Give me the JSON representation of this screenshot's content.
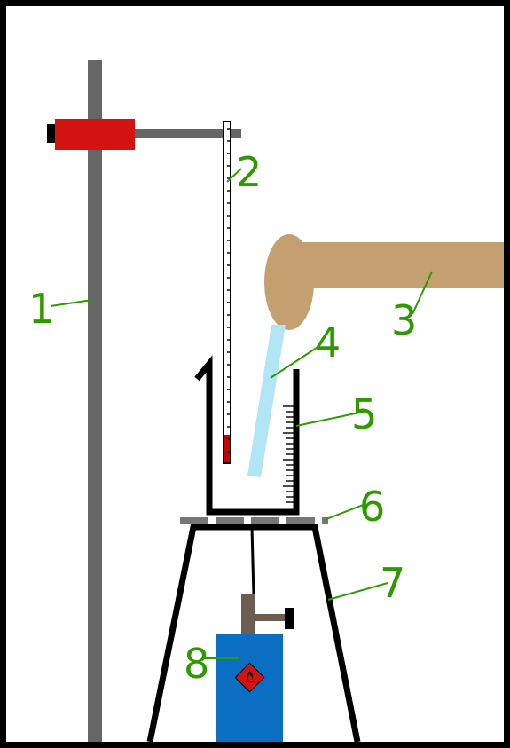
{
  "colors": {
    "border": "#000000",
    "stand": "#666666",
    "clamp": "#d31212",
    "arm": "#c4a070",
    "water": "#b3e6f4",
    "thermometer_liquid": "#cc0000",
    "gauze": "#777777",
    "burner": "#0a6fc2",
    "burner_valve": "#6b5e50",
    "hazard": "#d31212",
    "label": "#2e9a00",
    "leader": "#2e9a00"
  },
  "icons": {
    "hazard_symbol": "flammable-hazard-icon"
  },
  "labels": [
    {
      "id": "stand",
      "text": "1"
    },
    {
      "id": "thermometer",
      "text": "2"
    },
    {
      "id": "arm",
      "text": "3"
    },
    {
      "id": "water-stream",
      "text": "4"
    },
    {
      "id": "beaker",
      "text": "5"
    },
    {
      "id": "gauze",
      "text": "6"
    },
    {
      "id": "tripod",
      "text": "7"
    },
    {
      "id": "burner",
      "text": "8"
    }
  ]
}
